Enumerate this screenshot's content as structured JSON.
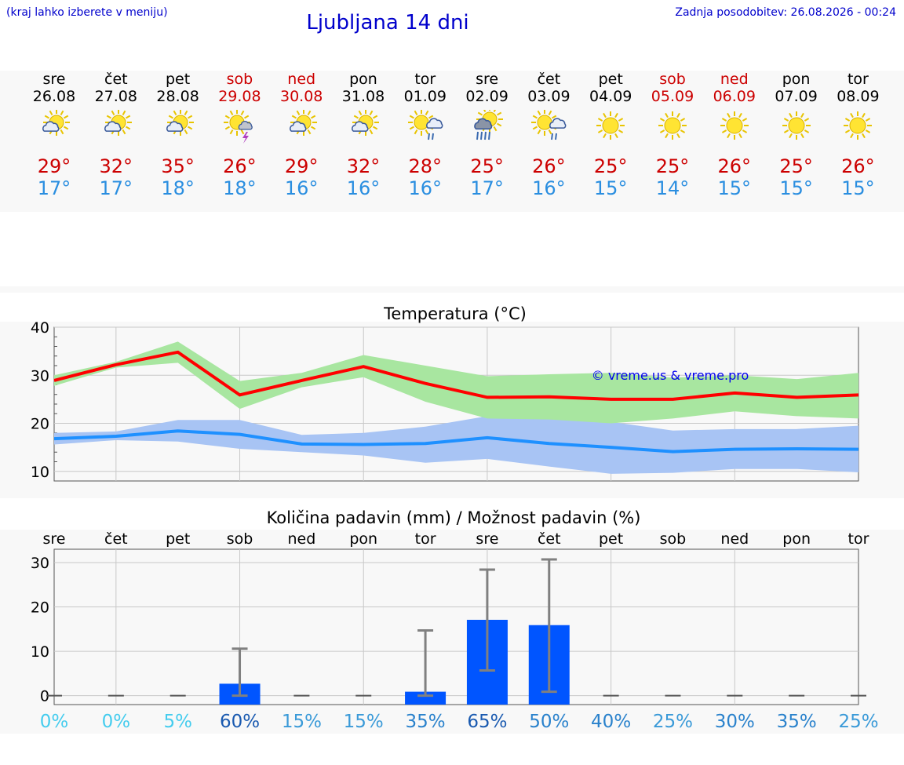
{
  "header": {
    "hint": "(kraj lahko izberete v meniju)",
    "title": "Ljubljana 14 dni",
    "updated": "Zadnja posodobitev: 26.08.2026 - 00:24"
  },
  "days": [
    {
      "name": "sre",
      "date": "26.08",
      "weekend": false,
      "icon": "sun-cloud-icon",
      "tmax": "29°",
      "tmin": "17°"
    },
    {
      "name": "čet",
      "date": "27.08",
      "weekend": false,
      "icon": "sun-cloud-icon",
      "tmax": "32°",
      "tmin": "17°"
    },
    {
      "name": "pet",
      "date": "28.08",
      "weekend": false,
      "icon": "sun-cloud-icon",
      "tmax": "35°",
      "tmin": "18°"
    },
    {
      "name": "sob",
      "date": "29.08",
      "weekend": true,
      "icon": "sun-thunder-icon",
      "tmax": "26°",
      "tmin": "18°"
    },
    {
      "name": "ned",
      "date": "30.08",
      "weekend": true,
      "icon": "sun-cloud-icon",
      "tmax": "29°",
      "tmin": "16°"
    },
    {
      "name": "pon",
      "date": "31.08",
      "weekend": false,
      "icon": "sun-cloud-icon",
      "tmax": "32°",
      "tmin": "16°"
    },
    {
      "name": "tor",
      "date": "01.09",
      "weekend": false,
      "icon": "sun-cloud-rain-icon",
      "tmax": "28°",
      "tmin": "16°"
    },
    {
      "name": "sre",
      "date": "02.09",
      "weekend": false,
      "icon": "sun-dark-cloud-rain-icon",
      "tmax": "25°",
      "tmin": "17°"
    },
    {
      "name": "čet",
      "date": "03.09",
      "weekend": false,
      "icon": "sun-cloud-rain-icon",
      "tmax": "26°",
      "tmin": "16°"
    },
    {
      "name": "pet",
      "date": "04.09",
      "weekend": false,
      "icon": "sun-icon",
      "tmax": "25°",
      "tmin": "15°"
    },
    {
      "name": "sob",
      "date": "05.09",
      "weekend": true,
      "icon": "sun-icon",
      "tmax": "25°",
      "tmin": "14°"
    },
    {
      "name": "ned",
      "date": "06.09",
      "weekend": true,
      "icon": "sun-icon",
      "tmax": "26°",
      "tmin": "15°"
    },
    {
      "name": "pon",
      "date": "07.09",
      "weekend": false,
      "icon": "sun-icon",
      "tmax": "25°",
      "tmin": "15°"
    },
    {
      "name": "tor",
      "date": "08.09",
      "weekend": false,
      "icon": "sun-icon",
      "tmax": "26°",
      "tmin": "15°"
    }
  ],
  "chart_data": [
    {
      "type": "line",
      "title": "Temperatura (°C)",
      "watermark": "© vreme.us & vreme.pro",
      "ylim": [
        8,
        40
      ],
      "yticks": [
        10,
        20,
        30,
        40
      ],
      "grid": true,
      "colors": {
        "max": "#ff0000",
        "min": "#1e90ff",
        "max_band": "#a8e6a0",
        "min_band": "#a8c4f4"
      },
      "x": [
        "26.08",
        "27.08",
        "28.08",
        "29.08",
        "30.08",
        "31.08",
        "01.09",
        "02.09",
        "03.09",
        "04.09",
        "05.09",
        "06.09",
        "07.09",
        "08.09"
      ],
      "series": [
        {
          "key": "max",
          "values": [
            28.9,
            32.2,
            34.8,
            25.9,
            28.9,
            31.8,
            28.3,
            25.4,
            25.5,
            25.0,
            25.0,
            26.3,
            25.4,
            25.9
          ]
        },
        {
          "key": "max_band_top",
          "values": [
            30.0,
            32.8,
            37.0,
            28.8,
            30.5,
            34.2,
            32.0,
            29.8,
            30.2,
            30.5,
            29.5,
            30.0,
            29.2,
            30.5
          ]
        },
        {
          "key": "max_band_bottom",
          "values": [
            27.8,
            31.6,
            32.6,
            23.0,
            27.5,
            29.6,
            24.5,
            21.0,
            20.8,
            20.0,
            21.0,
            22.5,
            21.5,
            21.0
          ]
        },
        {
          "key": "min",
          "values": [
            16.8,
            17.3,
            18.4,
            17.7,
            15.7,
            15.6,
            15.8,
            17.0,
            15.8,
            15.0,
            14.1,
            14.6,
            14.7,
            14.6
          ]
        },
        {
          "key": "min_band_top",
          "values": [
            18.0,
            18.3,
            20.7,
            20.7,
            17.6,
            18.0,
            19.3,
            21.5,
            21.0,
            20.3,
            18.5,
            18.8,
            18.8,
            19.5
          ]
        },
        {
          "key": "min_band_bottom",
          "values": [
            15.6,
            16.5,
            16.2,
            14.7,
            14.0,
            13.3,
            11.8,
            12.6,
            11.0,
            9.5,
            9.7,
            10.5,
            10.5,
            9.8
          ]
        }
      ]
    },
    {
      "type": "bar",
      "title": "Količina padavin (mm) / Možnost padavin (%)",
      "ylim": [
        -2,
        33
      ],
      "yticks": [
        0,
        10,
        20,
        30
      ],
      "grid": true,
      "colors": {
        "bar": "#0055ff",
        "error": "#808080"
      },
      "categories": [
        "sre",
        "čet",
        "pet",
        "sob",
        "ned",
        "pon",
        "tor",
        "sre",
        "čet",
        "pet",
        "sob",
        "ned",
        "pon",
        "tor"
      ],
      "values": [
        0,
        0,
        0,
        2.7,
        0,
        0,
        0.9,
        17.1,
        15.9,
        0,
        0,
        0,
        0,
        0
      ],
      "error_low": [
        0,
        0,
        0,
        0,
        0,
        0,
        0,
        5.7,
        0.9,
        0,
        0,
        0,
        0,
        0
      ],
      "error_high": [
        0,
        0,
        0,
        10.6,
        0,
        0,
        14.7,
        28.4,
        30.7,
        0,
        0,
        0,
        0,
        0
      ],
      "probability": [
        "0%",
        "0%",
        "5%",
        "60%",
        "15%",
        "15%",
        "35%",
        "65%",
        "50%",
        "40%",
        "25%",
        "30%",
        "35%",
        "25%"
      ],
      "probability_colors": [
        "#44ccee",
        "#44ccee",
        "#44ccee",
        "#1a5ab0",
        "#3a9ad8",
        "#3a9ad8",
        "#2a82cc",
        "#1a5ab0",
        "#2a82cc",
        "#2a82cc",
        "#3a9ad8",
        "#2a82cc",
        "#2a82cc",
        "#3a9ad8"
      ]
    }
  ]
}
